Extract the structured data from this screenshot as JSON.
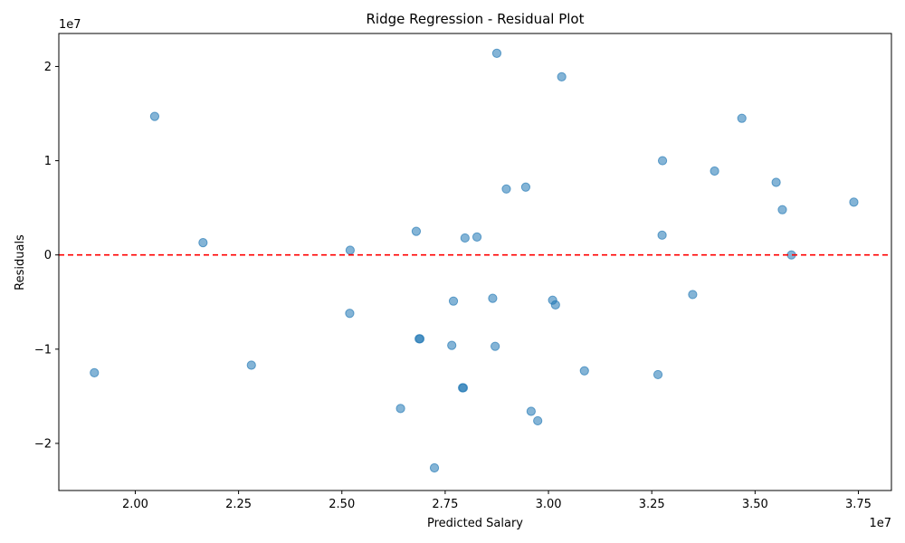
{
  "chart_data": {
    "type": "scatter",
    "title": "Ridge Regression - Residual Plot",
    "xlabel": "Predicted Salary",
    "ylabel": "Residuals",
    "x_offset_label": "1e7",
    "y_offset_label": "1e7",
    "xlim": [
      1.815,
      3.83
    ],
    "ylim": [
      -2.5,
      2.35
    ],
    "xticks": [
      2.0,
      2.25,
      2.5,
      2.75,
      3.0,
      3.25,
      3.5,
      3.75
    ],
    "xtick_labels": [
      "2.00",
      "2.25",
      "2.50",
      "2.75",
      "3.00",
      "3.25",
      "3.50",
      "3.75"
    ],
    "yticks": [
      -2,
      -1,
      0,
      1,
      2
    ],
    "ytick_labels": [
      "−2",
      "−1",
      "0",
      "1",
      "2"
    ],
    "grid": false,
    "reference_line": {
      "y": 0,
      "style": "dashed",
      "color": "#ff0000"
    },
    "point_color": "#1f77b4",
    "point_alpha": 0.55,
    "points": [
      {
        "x": 2.875,
        "y": 2.14
      },
      {
        "x": 3.032,
        "y": 1.89
      },
      {
        "x": 2.047,
        "y": 1.47
      },
      {
        "x": 3.468,
        "y": 1.45
      },
      {
        "x": 3.276,
        "y": 1.0
      },
      {
        "x": 3.402,
        "y": 0.89
      },
      {
        "x": 3.551,
        "y": 0.77
      },
      {
        "x": 2.898,
        "y": 0.7
      },
      {
        "x": 2.945,
        "y": 0.72
      },
      {
        "x": 3.739,
        "y": 0.56
      },
      {
        "x": 3.566,
        "y": 0.48
      },
      {
        "x": 2.68,
        "y": 0.25
      },
      {
        "x": 2.798,
        "y": 0.18
      },
      {
        "x": 2.827,
        "y": 0.19
      },
      {
        "x": 3.275,
        "y": 0.21
      },
      {
        "x": 2.164,
        "y": 0.13
      },
      {
        "x": 2.52,
        "y": 0.05
      },
      {
        "x": 3.588,
        "y": 0.0
      },
      {
        "x": 3.349,
        "y": -0.42
      },
      {
        "x": 2.865,
        "y": -0.46
      },
      {
        "x": 2.77,
        "y": -0.49
      },
      {
        "x": 3.01,
        "y": -0.48
      },
      {
        "x": 3.017,
        "y": -0.53
      },
      {
        "x": 2.519,
        "y": -0.62
      },
      {
        "x": 2.687,
        "y": -0.89
      },
      {
        "x": 2.689,
        "y": -0.89
      },
      {
        "x": 2.766,
        "y": -0.96
      },
      {
        "x": 2.871,
        "y": -0.97
      },
      {
        "x": 2.281,
        "y": -1.17
      },
      {
        "x": 1.901,
        "y": -1.25
      },
      {
        "x": 3.087,
        "y": -1.23
      },
      {
        "x": 3.265,
        "y": -1.27
      },
      {
        "x": 2.792,
        "y": -1.41
      },
      {
        "x": 2.794,
        "y": -1.41
      },
      {
        "x": 2.642,
        "y": -1.63
      },
      {
        "x": 2.958,
        "y": -1.66
      },
      {
        "x": 2.974,
        "y": -1.76
      },
      {
        "x": 2.724,
        "y": -2.26
      }
    ]
  }
}
